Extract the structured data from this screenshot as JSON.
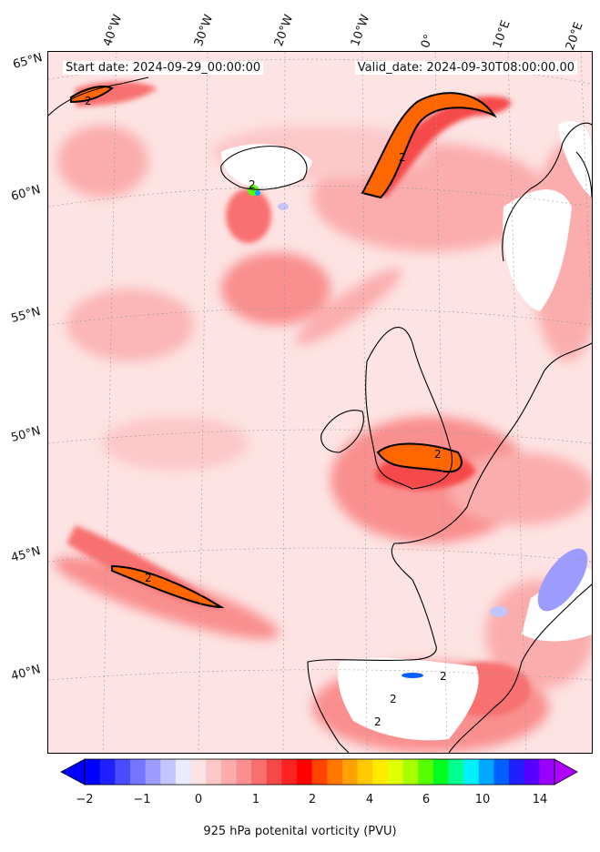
{
  "map": {
    "start_date": "Start date: 2024-09-29_00:00:00",
    "valid_date": "Valid_date: 2024-09-30T08:00:00.00",
    "lon_labels": [
      "40°W",
      "30°W",
      "20°W",
      "10°W",
      "0°",
      "10°E",
      "20°E"
    ],
    "lat_labels": [
      "65°N",
      "60°N",
      "55°N",
      "50°N",
      "45°N",
      "40°N"
    ],
    "contour_label": "2"
  },
  "colorbar": {
    "label": "925 hPa potenital vorticity (PVU)",
    "tick_labels": [
      "−2",
      "−1",
      "0",
      "1",
      "2",
      "4",
      "6",
      "10",
      "14"
    ],
    "colors": [
      "#0000ff",
      "#2020ff",
      "#4a4aff",
      "#7575ff",
      "#9c9cff",
      "#c4c4ff",
      "#ebebff",
      "#fde3e3",
      "#fcc8c8",
      "#fbadad",
      "#f98f8f",
      "#f86f6f",
      "#f64848",
      "#ff2222",
      "#ff0000",
      "#ff4400",
      "#ff7700",
      "#ffa200",
      "#ffc800",
      "#ffea00",
      "#e0ff00",
      "#a8ff00",
      "#55ff00",
      "#00ff20",
      "#00ff90",
      "#00f0ff",
      "#00a8ff",
      "#0060ff",
      "#2020ff",
      "#5500ff",
      "#9900ff"
    ]
  }
}
